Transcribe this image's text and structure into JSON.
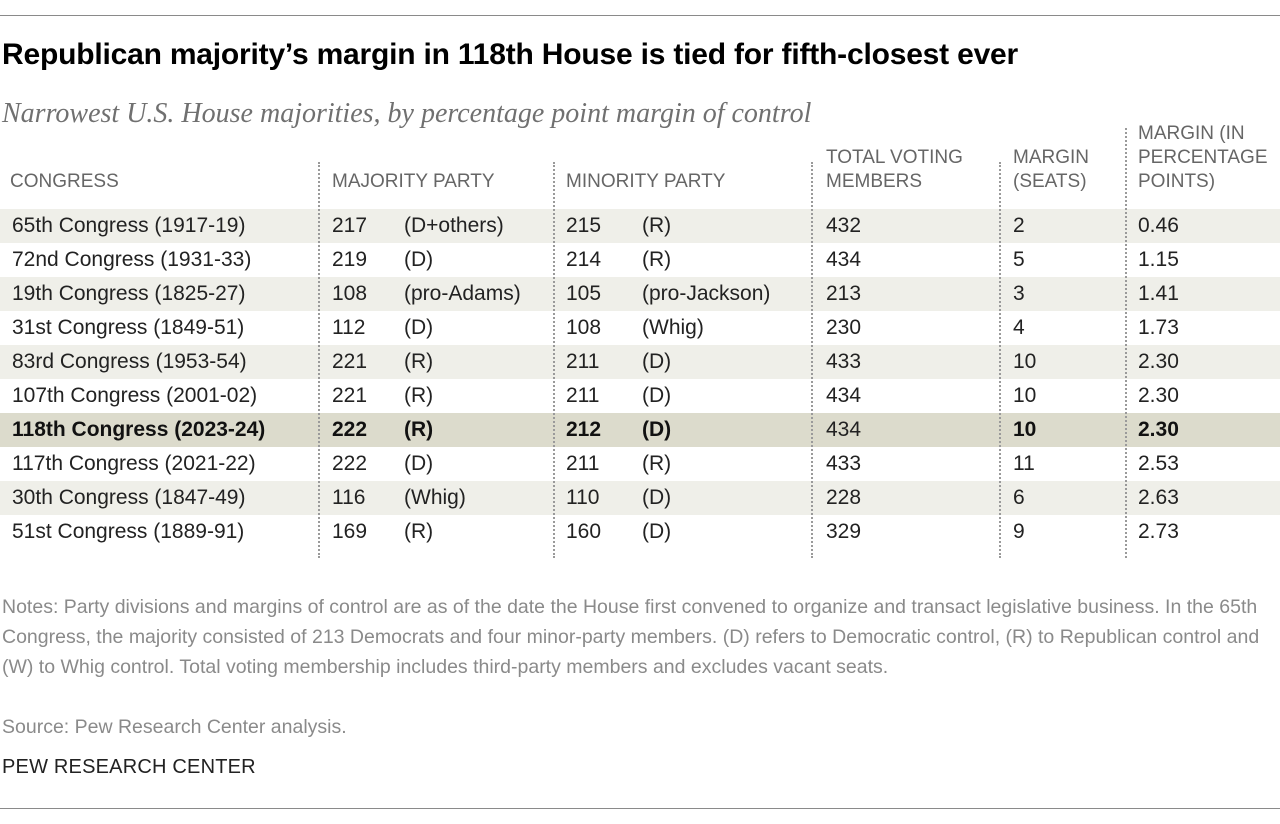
{
  "title": "Republican majority’s margin in 118th House is tied for fifth-closest ever",
  "subtitle": "Narrowest U.S. House majorities, by percentage point margin of control",
  "chart_data": {
    "type": "table",
    "columns": [
      "CONGRESS",
      "MAJORITY PARTY",
      "MINORITY PARTY",
      "TOTAL VOTING MEMBERS",
      "MARGIN (SEATS)",
      "MARGIN (IN PERCENTAGE POINTS)"
    ],
    "column_header_lines": [
      [
        "CONGRESS"
      ],
      [
        "MAJORITY PARTY"
      ],
      [
        "MINORITY PARTY"
      ],
      [
        "TOTAL VOTING",
        "MEMBERS"
      ],
      [
        "MARGIN",
        "(SEATS)"
      ],
      [
        "MARGIN (IN",
        "PERCENTAGE",
        "POINTS)"
      ]
    ],
    "rows": [
      {
        "congress": "65th Congress (1917-19)",
        "maj_seats": "217",
        "maj_party": "(D+others)",
        "min_seats": "215",
        "min_party": "(R)",
        "total": "432",
        "margin_seats": "2",
        "margin_pts": "0.46",
        "highlight": false
      },
      {
        "congress": "72nd Congress (1931-33)",
        "maj_seats": "219",
        "maj_party": "(D)",
        "min_seats": "214",
        "min_party": "(R)",
        "total": "434",
        "margin_seats": "5",
        "margin_pts": "1.15",
        "highlight": false
      },
      {
        "congress": "19th Congress (1825-27)",
        "maj_seats": "108",
        "maj_party": "(pro-Adams)",
        "min_seats": "105",
        "min_party": "(pro-Jackson)",
        "total": "213",
        "margin_seats": "3",
        "margin_pts": "1.41",
        "highlight": false
      },
      {
        "congress": "31st Congress (1849-51)",
        "maj_seats": "112",
        "maj_party": "(D)",
        "min_seats": "108",
        "min_party": "(Whig)",
        "total": "230",
        "margin_seats": "4",
        "margin_pts": "1.73",
        "highlight": false
      },
      {
        "congress": "83rd Congress (1953-54)",
        "maj_seats": "221",
        "maj_party": "(R)",
        "min_seats": "211",
        "min_party": "(D)",
        "total": "433",
        "margin_seats": "10",
        "margin_pts": "2.30",
        "highlight": false
      },
      {
        "congress": "107th Congress (2001-02)",
        "maj_seats": "221",
        "maj_party": "(R)",
        "min_seats": "211",
        "min_party": "(D)",
        "total": "434",
        "margin_seats": "10",
        "margin_pts": "2.30",
        "highlight": false
      },
      {
        "congress": "118th Congress (2023-24)",
        "maj_seats": "222",
        "maj_party": "(R)",
        "min_seats": "212",
        "min_party": "(D)",
        "total": "434",
        "margin_seats": "10",
        "margin_pts": "2.30",
        "highlight": true
      },
      {
        "congress": "117th Congress (2021-22)",
        "maj_seats": "222",
        "maj_party": "(D)",
        "min_seats": "211",
        "min_party": "(R)",
        "total": "433",
        "margin_seats": "11",
        "margin_pts": "2.53",
        "highlight": false
      },
      {
        "congress": "30th Congress (1847-49)",
        "maj_seats": "116",
        "maj_party": "(Whig)",
        "min_seats": "110",
        "min_party": "(D)",
        "total": "228",
        "margin_seats": "6",
        "margin_pts": "2.63",
        "highlight": false
      },
      {
        "congress": "51st Congress (1889-91)",
        "maj_seats": "169",
        "maj_party": "(R)",
        "min_seats": "160",
        "min_party": "(D)",
        "total": "329",
        "margin_seats": "9",
        "margin_pts": "2.73",
        "highlight": false
      }
    ]
  },
  "notes": "Notes: Party divisions and margins of control are as of the date the House first convened to organize and transact legislative business. In the 65th Congress, the majority consisted of 213 Democrats and four minor-party members. (D) refers to Democratic control, (R) to Republican control and (W) to Whig control. Total voting membership includes third-party members and excludes vacant seats.",
  "source": "Source: Pew Research Center analysis.",
  "brand": "PEW RESEARCH CENTER"
}
